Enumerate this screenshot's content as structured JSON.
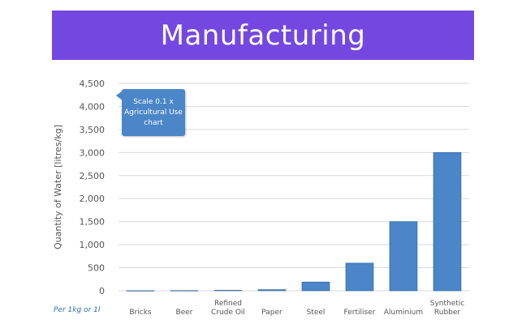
{
  "banner": {
    "title": "Manufacturing",
    "color": "#7448e0"
  },
  "callout": {
    "text": "Scale 0.1 x Agricultural Use chart",
    "color": "#4a86c8"
  },
  "per_unit_note": {
    "text": "Per 1kg or 1l",
    "color": "#2f6fb5"
  },
  "colors": {
    "bar": "#4a86c8",
    "bar_edge": "#2f5f95",
    "grid": "#d9d9d9",
    "axis_text": "#555555"
  },
  "chart_data": {
    "type": "bar",
    "ylabel": "Quantity of Water [litres/kg]",
    "ylim": [
      0,
      4500
    ],
    "yticks": [
      0,
      500,
      1000,
      1500,
      2000,
      2500,
      3000,
      3500,
      4000,
      4500
    ],
    "ytick_labels": [
      "0",
      "500",
      "1,000",
      "1,500",
      "2,000",
      "2,500",
      "3,000",
      "3,500",
      "4,000",
      "4,500"
    ],
    "grid": true,
    "categories": [
      [
        "Bricks"
      ],
      [
        "Beer"
      ],
      [
        "Refined",
        "Crude Oil"
      ],
      [
        "Paper"
      ],
      [
        "Steel"
      ],
      [
        "Fertiliser"
      ],
      [
        "Aluminium"
      ],
      [
        "Synthetic",
        "Rubber"
      ]
    ],
    "values": [
      2,
      4,
      10,
      25,
      190,
      600,
      1500,
      3000
    ]
  }
}
